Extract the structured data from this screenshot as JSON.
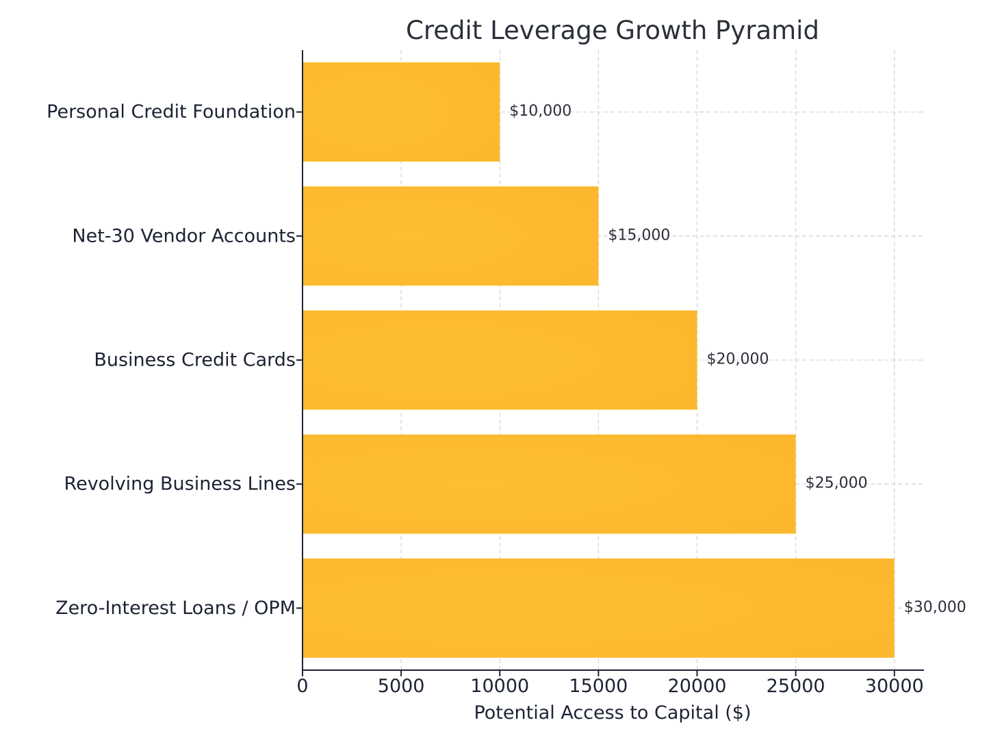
{
  "chart_data": {
    "type": "bar",
    "orientation": "horizontal",
    "title": "Credit Leverage Growth Pyramid",
    "xlabel": "Potential Access to Capital ($)",
    "ylabel": "",
    "categories": [
      "Personal Credit Foundation",
      "Net-30 Vendor Accounts",
      "Business Credit Cards",
      "Revolving Business Lines",
      "Zero-Interest Loans / OPM"
    ],
    "values": [
      10000,
      15000,
      20000,
      25000,
      30000
    ],
    "data_labels": [
      "$10,000",
      "$15,000",
      "$20,000",
      "$25,000",
      "$30,000"
    ],
    "x_ticks": [
      0,
      5000,
      10000,
      15000,
      20000,
      25000,
      30000
    ],
    "xlim": [
      0,
      31500
    ],
    "grid": true,
    "bar_color": "#FDBE33",
    "bar_color_dark": "#F9B024"
  }
}
